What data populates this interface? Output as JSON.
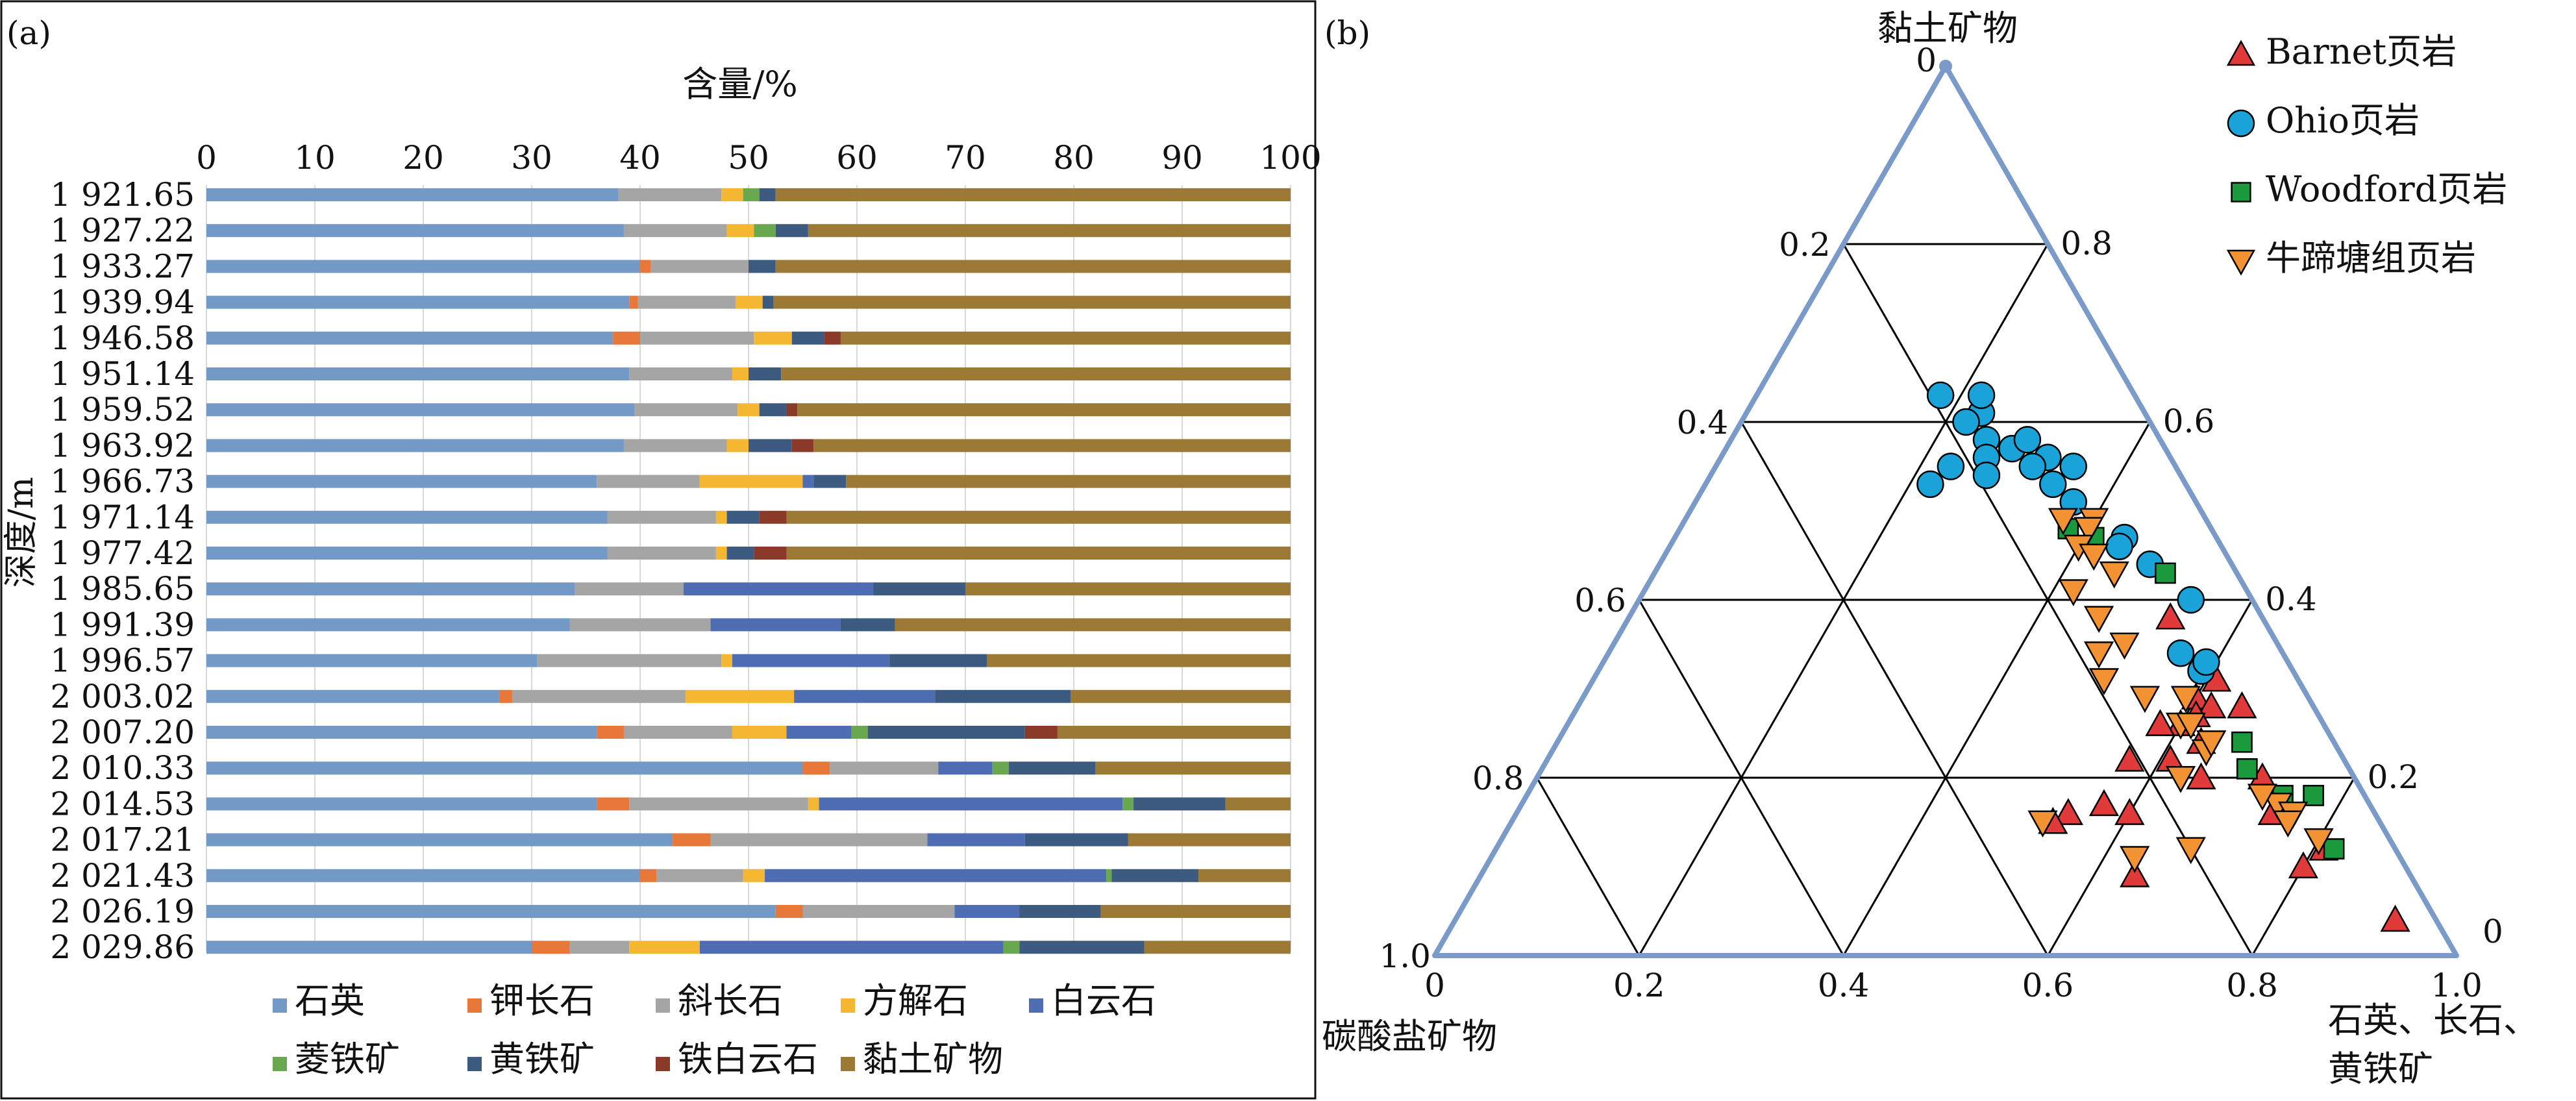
{
  "panels": {
    "a_label": "(a)",
    "b_label": "(b)"
  },
  "colors": {
    "石英": "#7399c6",
    "钾长石": "#e8773a",
    "斜长石": "#a5a5a5",
    "方解石": "#f5b731",
    "白云石": "#4f6db3",
    "菱铁矿": "#6aa84f",
    "黄铁矿": "#3d5a80",
    "铁白云石": "#8b3a2a",
    "黏土矿物": "#9c7a36",
    "ternary_frame": "#7a9bc9",
    "barnet": "#e03a3a",
    "ohio": "#1aa3d9",
    "woodford": "#1a9a3c",
    "niutitang": "#f39233"
  },
  "chart_data": [
    {
      "type": "bar",
      "orientation": "horizontal-stacked",
      "title": "含量/%",
      "ylabel": "深度/m",
      "xlim": [
        0,
        100
      ],
      "x_ticks": [
        "0",
        "10",
        "20",
        "30",
        "40",
        "50",
        "60",
        "70",
        "80",
        "90",
        "100"
      ],
      "categories": [
        "1 921.65",
        "1 927.22",
        "1 933.27",
        "1 939.94",
        "1 946.58",
        "1 951.14",
        "1 959.52",
        "1 963.92",
        "1 966.73",
        "1 971.14",
        "1 977.42",
        "1 985.65",
        "1 991.39",
        "1 996.57",
        "2 003.02",
        "2 007.20",
        "2 010.33",
        "2 014.53",
        "2 017.21",
        "2 021.43",
        "2 026.19",
        "2 029.86"
      ],
      "series": [
        {
          "name": "石英",
          "values": [
            38,
            38.5,
            40,
            39,
            37.5,
            39,
            39.5,
            38.5,
            36,
            37,
            37,
            34,
            33.5,
            30.5,
            27,
            36,
            55,
            36,
            43,
            40,
            52.5,
            30
          ]
        },
        {
          "name": "钾长石",
          "values": [
            0,
            0,
            1,
            0.8,
            2.5,
            0,
            0,
            0,
            0,
            0,
            0,
            0,
            0,
            0,
            1.2,
            2.5,
            2.5,
            3,
            3.5,
            1.5,
            2.5,
            3.5
          ]
        },
        {
          "name": "斜长石",
          "values": [
            9.5,
            9.5,
            9,
            9,
            10.5,
            9.5,
            9.5,
            9.5,
            9.5,
            10,
            10,
            10,
            13,
            17,
            16,
            10,
            10,
            16.5,
            20,
            8,
            14,
            5.5
          ]
        },
        {
          "name": "方解石",
          "values": [
            2,
            2.5,
            0,
            2.5,
            3.5,
            1.5,
            2,
            2,
            9.5,
            1,
            1,
            0,
            0,
            1,
            10,
            5,
            0,
            1,
            0,
            2,
            0,
            6.5
          ]
        },
        {
          "name": "白云石",
          "values": [
            0,
            0,
            0,
            0,
            0,
            0,
            0,
            0,
            1,
            0,
            0,
            17.5,
            12,
            14.5,
            13,
            6,
            5,
            28,
            9,
            31.5,
            6,
            28
          ]
        },
        {
          "name": "菱铁矿",
          "values": [
            1.5,
            2,
            0,
            0,
            0,
            0,
            0,
            0,
            0,
            0,
            0,
            0,
            0,
            0,
            0,
            1.5,
            1.5,
            1,
            0,
            0.5,
            0,
            1.5
          ]
        },
        {
          "name": "黄铁矿",
          "values": [
            1.5,
            3,
            2.5,
            1,
            3,
            3,
            2.5,
            4,
            3,
            3,
            2.5,
            8.5,
            5,
            9,
            12.5,
            14.5,
            8,
            8.5,
            9.5,
            8,
            7.5,
            11.5
          ]
        },
        {
          "name": "铁白云石",
          "values": [
            0,
            0,
            0,
            0,
            1.5,
            0,
            1,
            2,
            0,
            2.5,
            3,
            0,
            0,
            0,
            0,
            3,
            0,
            0,
            0,
            0,
            0,
            0
          ]
        },
        {
          "name": "黏土矿物",
          "values": [
            47.5,
            44.5,
            47.5,
            47.7,
            41.5,
            47,
            45.5,
            44,
            41,
            46.5,
            46.5,
            30,
            36.5,
            28,
            20.3,
            21.5,
            18,
            6,
            15,
            8.5,
            17.5,
            13.5
          ]
        }
      ]
    },
    {
      "type": "scatter",
      "subtype": "ternary",
      "apex_top_label": "黏土矿物",
      "apex_left_label": "碳酸盐矿物",
      "apex_right_label_line1": "石英、长石、",
      "apex_right_label_line2": "黄铁矿",
      "bottom_axis_ticks": [
        "0",
        "0.2",
        "0.4",
        "0.6",
        "0.8",
        "1.0"
      ],
      "left_axis_ticks": [
        "1.0",
        "0.8",
        "0.6",
        "0.4",
        "0.2",
        "0"
      ],
      "right_axis_ticks": [
        "0",
        "0.2",
        "0.4",
        "0.6",
        "0.8"
      ],
      "grid": true,
      "legend_position": "top-right",
      "series": [
        {
          "name": "Barnet页岩",
          "marker": "triangle-up",
          "points": [
            [
              0.08,
              0.31
            ],
            [
              0.07,
              0.28
            ],
            [
              0.11,
              0.29
            ],
            [
              0.1,
              0.28
            ],
            [
              0.12,
              0.27
            ],
            [
              0.14,
              0.26
            ],
            [
              0.16,
              0.26
            ],
            [
              0.13,
              0.24
            ],
            [
              0.17,
              0.22
            ],
            [
              0.21,
              0.22
            ],
            [
              0.15,
              0.2
            ],
            [
              0.09,
              0.2
            ],
            [
              0.1,
              0.16
            ],
            [
              0.09,
              0.38
            ],
            [
              0.3,
              0.16
            ],
            [
              0.24,
              0.16
            ],
            [
              0.32,
              0.15
            ],
            [
              0.26,
              0.17
            ],
            [
              0.07,
              0.12
            ],
            [
              0.1,
              0.1
            ],
            [
              0.27,
              0.09
            ],
            [
              0.04,
              0.04
            ]
          ]
        },
        {
          "name": "Ohio页岩",
          "marker": "circle",
          "points": [
            [
              0.19,
              0.63
            ],
            [
              0.17,
              0.58
            ],
            [
              0.16,
              0.61
            ],
            [
              0.15,
              0.63
            ],
            [
              0.18,
              0.6
            ],
            [
              0.18,
              0.56
            ],
            [
              0.15,
              0.57
            ],
            [
              0.13,
              0.58
            ],
            [
              0.12,
              0.56
            ],
            [
              0.1,
              0.55
            ],
            [
              0.25,
              0.53
            ],
            [
              0.19,
              0.54
            ],
            [
              0.22,
              0.55
            ],
            [
              0.14,
              0.55
            ],
            [
              0.13,
              0.53
            ],
            [
              0.12,
              0.51
            ],
            [
              0.09,
              0.47
            ],
            [
              0.1,
              0.46
            ],
            [
              0.08,
              0.44
            ],
            [
              0.06,
              0.4
            ],
            [
              0.09,
              0.32
            ],
            [
              0.08,
              0.33
            ],
            [
              0.1,
              0.34
            ]
          ]
        },
        {
          "name": "Woodford页岩",
          "marker": "square",
          "points": [
            [
              0.14,
              0.48
            ],
            [
              0.12,
              0.47
            ],
            [
              0.07,
              0.43
            ],
            [
              0.09,
              0.24
            ],
            [
              0.1,
              0.21
            ],
            [
              0.08,
              0.18
            ],
            [
              0.05,
              0.18
            ],
            [
              0.06,
              0.12
            ]
          ]
        },
        {
          "name": "牛蹄塘组页岩",
          "marker": "triangle-down",
          "points": [
            [
              0.14,
              0.49
            ],
            [
              0.11,
              0.49
            ],
            [
              0.12,
              0.48
            ],
            [
              0.14,
              0.46
            ],
            [
              0.13,
              0.45
            ],
            [
              0.12,
              0.43
            ],
            [
              0.17,
              0.41
            ],
            [
              0.16,
              0.38
            ],
            [
              0.15,
              0.35
            ],
            [
              0.18,
              0.34
            ],
            [
              0.19,
              0.31
            ],
            [
              0.16,
              0.29
            ],
            [
              0.14,
              0.26
            ],
            [
              0.12,
              0.29
            ],
            [
              0.17,
              0.2
            ],
            [
              0.13,
              0.23
            ],
            [
              0.2,
              0.12
            ],
            [
              0.26,
              0.11
            ],
            [
              0.33,
              0.15
            ],
            [
              0.09,
              0.17
            ],
            [
              0.08,
              0.16
            ],
            [
              0.07,
              0.13
            ],
            [
              0.1,
              0.18
            ],
            [
              0.09,
              0.15
            ],
            [
              0.13,
              0.26
            ],
            [
              0.12,
              0.24
            ]
          ]
        }
      ]
    }
  ]
}
